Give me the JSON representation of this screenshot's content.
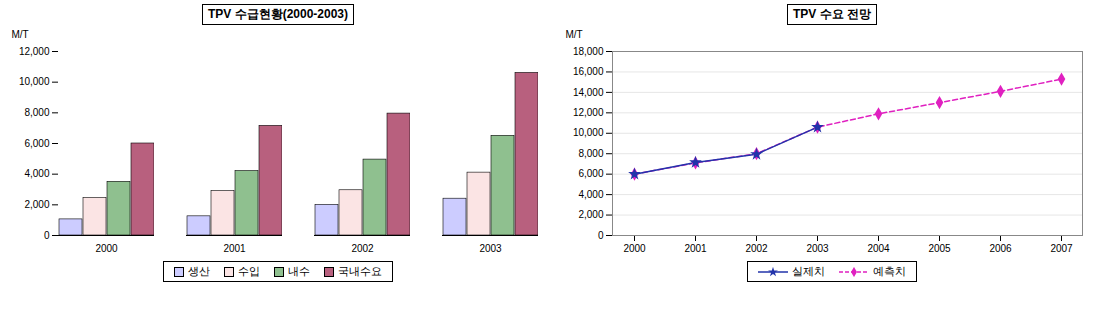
{
  "chart_data": [
    {
      "type": "bar",
      "title": "TPV 수급현황(2000-2003)",
      "ylabel": "M/T",
      "categories": [
        "2000",
        "2001",
        "2002",
        "2003"
      ],
      "series": [
        {
          "name": "생산",
          "color": "#ccccff",
          "values": [
            1050,
            1250,
            2000,
            2400
          ]
        },
        {
          "name": "수입",
          "color": "#fbe4e4",
          "values": [
            2450,
            2900,
            2950,
            4100
          ]
        },
        {
          "name": "내수",
          "color": "#8fc08f",
          "values": [
            3500,
            4200,
            4950,
            6500
          ]
        },
        {
          "name": "국내수요",
          "color": "#b8607e",
          "values": [
            6000,
            7150,
            7950,
            10600
          ]
        }
      ],
      "ylim": [
        0,
        12000
      ],
      "yticks": [
        0,
        2000,
        4000,
        6000,
        8000,
        10000,
        12000
      ],
      "grid": false,
      "legend": "bottom"
    },
    {
      "type": "line",
      "title": "TPV 수요 전망",
      "ylabel": "M/T",
      "categories": [
        "2000",
        "2001",
        "2002",
        "2003",
        "2004",
        "2005",
        "2006",
        "2007"
      ],
      "series": [
        {
          "name": "실제치",
          "color": "#2233aa",
          "marker": "star",
          "line_style": "solid",
          "values": [
            6000,
            7150,
            7950,
            10600,
            null,
            null,
            null,
            null
          ]
        },
        {
          "name": "예측치",
          "color": "#e020c0",
          "marker": "diamond",
          "line_style": "dashed",
          "values": [
            6000,
            7100,
            8000,
            10600,
            11900,
            13000,
            14100,
            15300
          ]
        }
      ],
      "ylim": [
        0,
        18000
      ],
      "yticks": [
        0,
        2000,
        4000,
        6000,
        8000,
        10000,
        12000,
        14000,
        16000,
        18000
      ],
      "grid": true,
      "legend": "bottom"
    }
  ]
}
